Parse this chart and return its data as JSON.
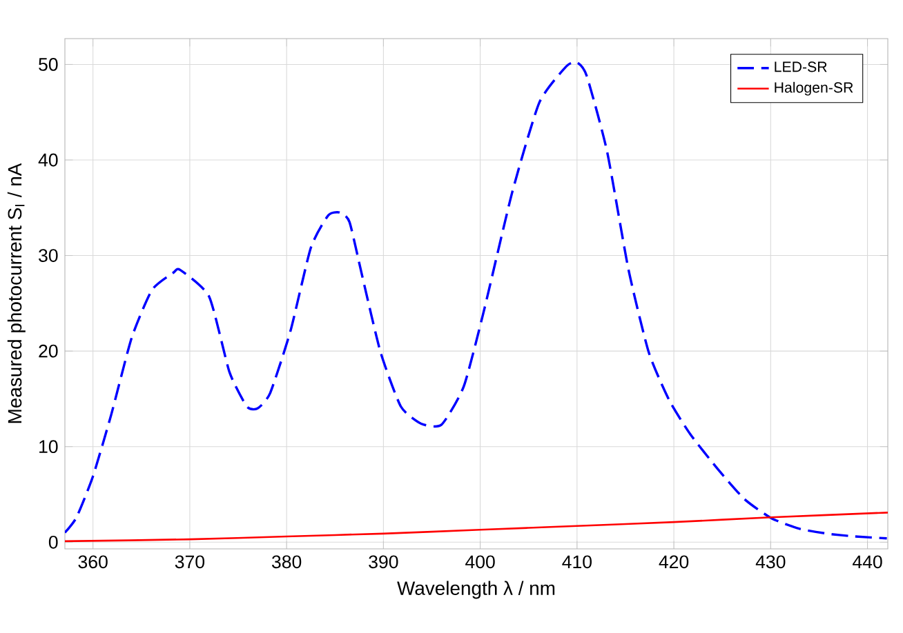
{
  "chart_data": {
    "type": "line",
    "xlabel": "Wavelength λ / nm",
    "ylabel": "Measured photocurrent S$_{I}$ / nA",
    "xlim": [
      357.1,
      442.1
    ],
    "ylim": [
      -0.7,
      52.7
    ],
    "xticks": [
      360,
      370,
      380,
      390,
      400,
      410,
      420,
      430,
      440
    ],
    "yticks": [
      0,
      10,
      20,
      30,
      40,
      50
    ],
    "grid": true,
    "legend": "top right",
    "series": [
      {
        "name": "LED-SR",
        "color": "#0000ff",
        "line_style": "dashed",
        "x": [
          357.1,
          358.3,
          360,
          361.9,
          364,
          366.1,
          368.3,
          369,
          372,
          374.1,
          375.9,
          377,
          378.3,
          380.4,
          382.5,
          384.3,
          385.5,
          386.5,
          387.8,
          389.7,
          391.8,
          393.9,
          396,
          398.3,
          400.4,
          403.3,
          406.1,
          408.9,
          410,
          411,
          413.1,
          415.3,
          417.4,
          419.5,
          421.7,
          424.5,
          427.3,
          430.1,
          433,
          435.8,
          438.7,
          442
        ],
        "values": [
          1.0,
          2.6,
          6.9,
          13.4,
          21.4,
          26.4,
          28.2,
          28.5,
          25.7,
          17.8,
          14.2,
          14.0,
          15.6,
          22.1,
          30.8,
          34.2,
          34.5,
          33.5,
          27.9,
          19.9,
          14.2,
          12.4,
          12.3,
          16.3,
          24.3,
          36.6,
          46,
          49.8,
          50.2,
          48.8,
          40.9,
          28.6,
          19.9,
          14.9,
          11.3,
          7.7,
          4.5,
          2.5,
          1.4,
          0.9,
          0.6,
          0.4
        ]
      },
      {
        "name": "Halogen-SR",
        "color": "#ff0000",
        "line_style": "solid",
        "x": [
          357.1,
          370,
          380,
          390,
          400,
          410,
          420,
          430,
          442.1
        ],
        "values": [
          0.1,
          0.3,
          0.6,
          0.9,
          1.3,
          1.7,
          2.1,
          2.6,
          3.1
        ]
      }
    ]
  }
}
